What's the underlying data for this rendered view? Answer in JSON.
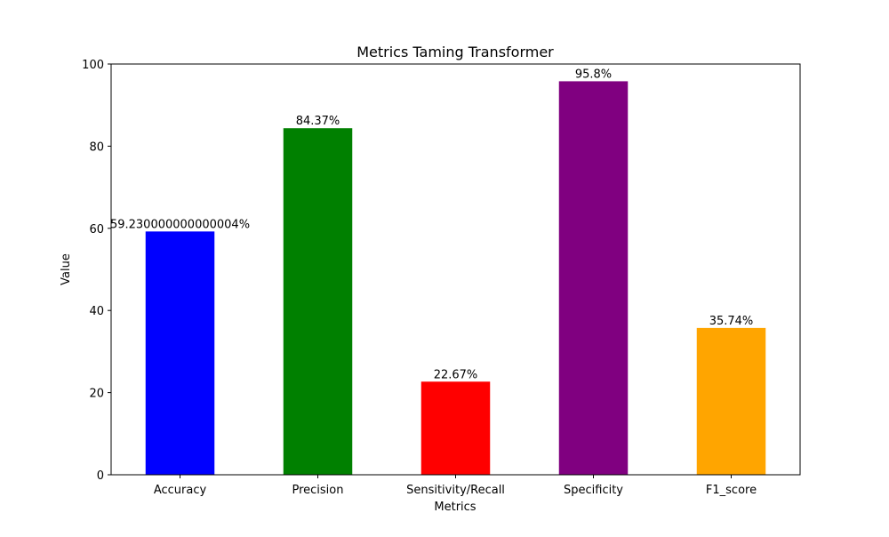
{
  "chart_data": {
    "type": "bar",
    "title": "Metrics Taming Transformer",
    "xlabel": "Metrics",
    "ylabel": "Value",
    "categories": [
      "Accuracy",
      "Precision",
      "Sensitivity/Recall",
      "Specificity",
      "F1_score"
    ],
    "values": [
      59.23,
      84.37,
      22.67,
      95.8,
      35.74
    ],
    "data_labels": [
      "59.230000000000004%",
      "84.37%",
      "22.67%",
      "95.8%",
      "35.74%"
    ],
    "colors": [
      "#0000ff",
      "#008000",
      "#ff0000",
      "#800080",
      "#ffa500"
    ],
    "ylim": [
      0,
      100
    ],
    "yticks": [
      0,
      20,
      40,
      60,
      80,
      100
    ],
    "ytick_labels": [
      "0",
      "20",
      "40",
      "60",
      "80",
      "100"
    ],
    "grid": false,
    "legend": "none"
  }
}
